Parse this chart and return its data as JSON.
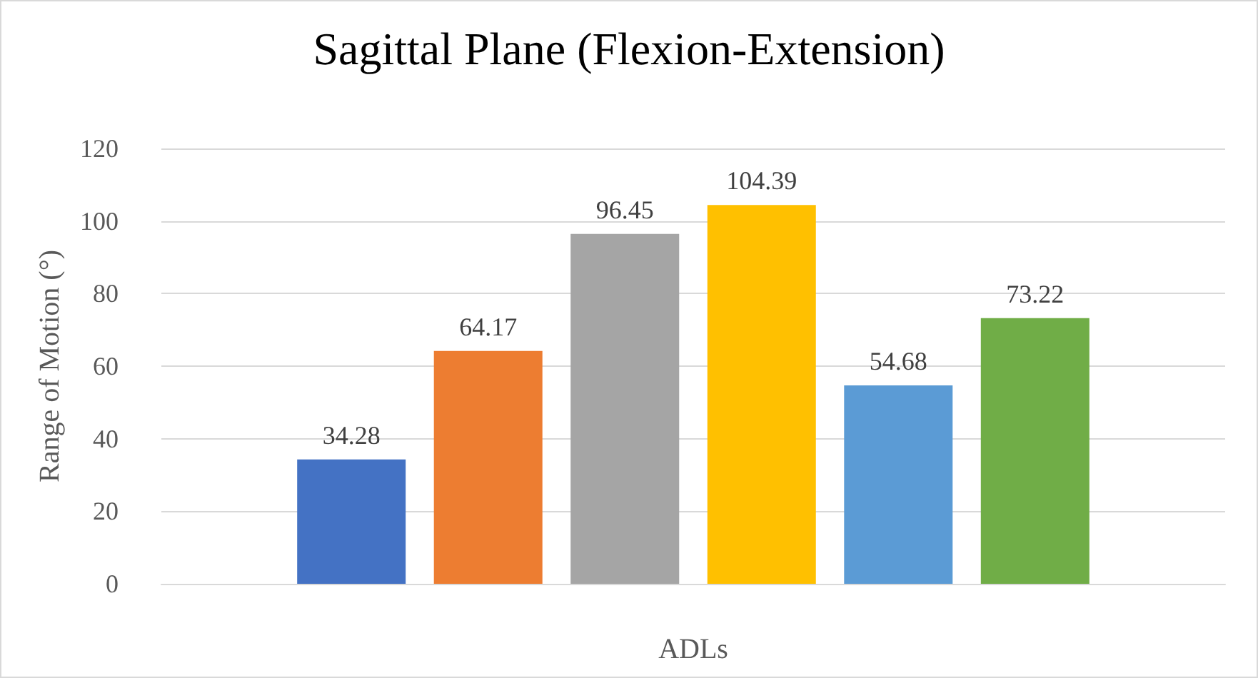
{
  "chart_data": {
    "type": "bar",
    "title": "Sagittal Plane (Flexion-Extension)",
    "xlabel": "ADLs",
    "ylabel": "Range of Motion (°)",
    "categories": [
      null
    ],
    "series": [
      {
        "color": "#4472c4",
        "values": [
          34.28
        ]
      },
      {
        "color": "#ed7d31",
        "values": [
          64.17
        ]
      },
      {
        "color": "#a5a5a5",
        "values": [
          96.45
        ]
      },
      {
        "color": "#ffc000",
        "values": [
          104.39
        ]
      },
      {
        "color": "#5b9bd5",
        "values": [
          54.68
        ]
      },
      {
        "color": "#70ad47",
        "values": [
          73.22
        ]
      }
    ],
    "ylim": [
      0,
      120
    ],
    "yticks": [
      0,
      20,
      40,
      60,
      80,
      100,
      120
    ],
    "grid": "y",
    "data_labels": true
  }
}
